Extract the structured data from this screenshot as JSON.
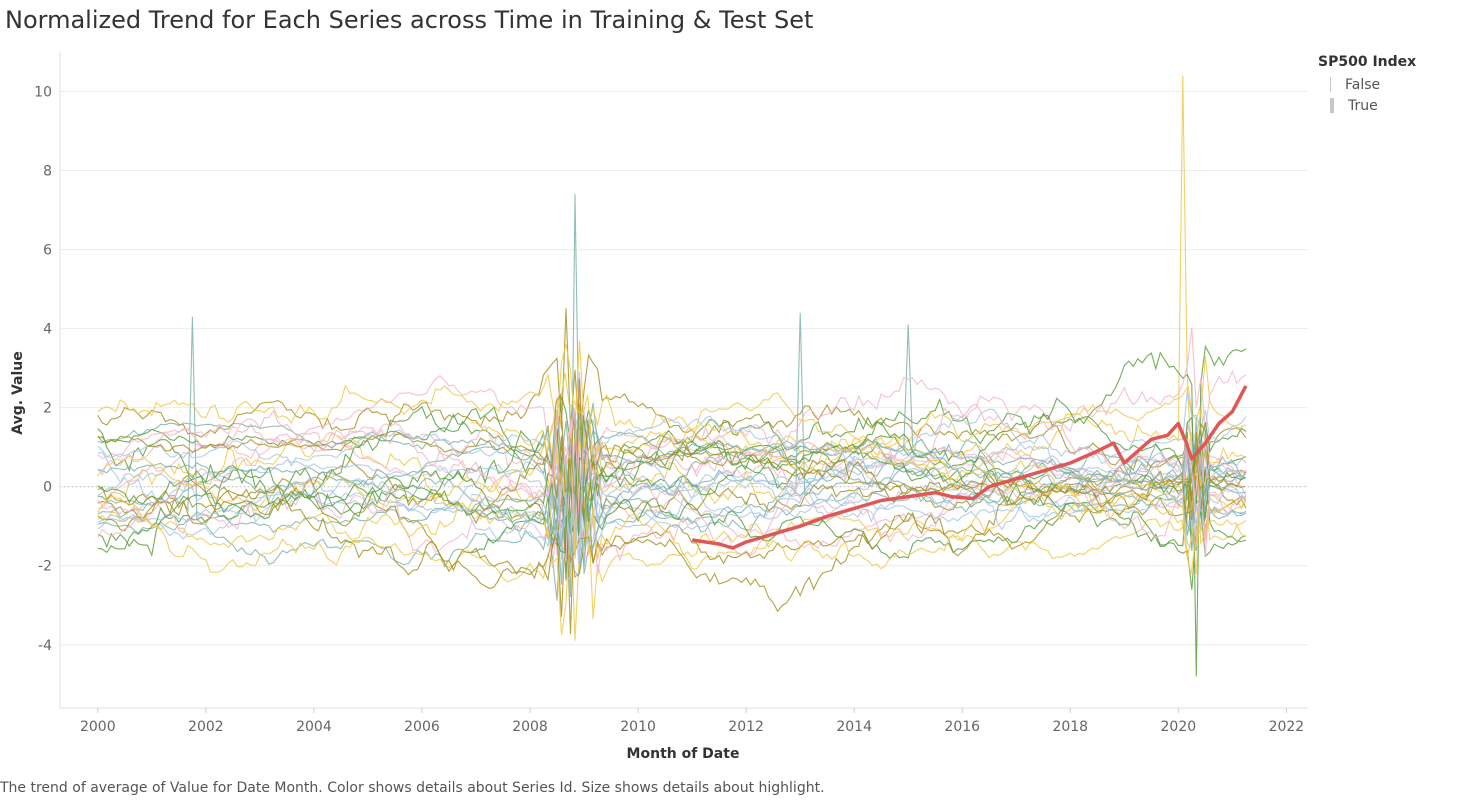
{
  "chart_data": {
    "type": "line",
    "title": "Normalized Trend for Each Series across Time in Training & Test Set",
    "xlabel": "Month of Date",
    "ylabel": "Avg. Value",
    "xlim": [
      1999.3,
      2022.4
    ],
    "ylim": [
      -5.6,
      11.0
    ],
    "x_ticks": [
      "2000",
      "2002",
      "2004",
      "2006",
      "2008",
      "2010",
      "2012",
      "2014",
      "2016",
      "2018",
      "2020",
      "2022"
    ],
    "y_ticks": [
      "-4",
      "-2",
      "0",
      "2",
      "4",
      "6",
      "8",
      "10"
    ],
    "zero_line": "dotted",
    "grid": true,
    "legend_position": "top-right",
    "legend": {
      "title": "SP500 Index",
      "entries": [
        {
          "label": "False",
          "size": "thin"
        },
        {
          "label": "True",
          "size": "thick"
        }
      ]
    },
    "caption": "The trend of average of Value for Date Month.  Color shows details about Series Id.  Size shows details about highlight.",
    "highlighted_series": {
      "name": "SP500 Index",
      "color": "#e05757",
      "x": [
        2011.0,
        2011.5,
        2011.75,
        2012.0,
        2012.5,
        2013.0,
        2013.5,
        2014.0,
        2014.5,
        2015.0,
        2015.5,
        2015.8,
        2016.2,
        2016.5,
        2017.0,
        2017.5,
        2018.0,
        2018.5,
        2018.8,
        2019.0,
        2019.5,
        2019.8,
        2020.0,
        2020.15,
        2020.25,
        2020.5,
        2020.75,
        2021.0,
        2021.25
      ],
      "y": [
        -1.35,
        -1.45,
        -1.55,
        -1.4,
        -1.2,
        -1.0,
        -0.75,
        -0.55,
        -0.35,
        -0.25,
        -0.15,
        -0.25,
        -0.3,
        0.0,
        0.2,
        0.4,
        0.6,
        0.9,
        1.1,
        0.6,
        1.2,
        1.3,
        1.6,
        1.1,
        0.7,
        1.1,
        1.6,
        1.9,
        2.55
      ]
    },
    "background_series": {
      "palette": [
        "#7fb3ad",
        "#5a9e3e",
        "#a8c7e6",
        "#f0c94a",
        "#a89022",
        "#f4b6c8"
      ],
      "start_dates": [
        2000.0,
        2000.0,
        2000.0,
        2000.0,
        2000.0,
        2000.0,
        2000.0,
        2000.0,
        2000.0,
        2000.0,
        2000.0,
        2000.0,
        2000.0,
        2000.0,
        2000.0,
        2000.0,
        2000.0,
        2000.0,
        2000.0,
        2000.0,
        2000.0,
        2000.0,
        2000.0,
        2000.0,
        2000.0,
        2000.0,
        2000.0,
        2000.0,
        2000.0,
        2000.0,
        2006.9,
        2006.9,
        2006.9,
        2006.9,
        2006.9,
        2006.9
      ],
      "count": 36,
      "value_range": [
        -4.9,
        10.4
      ]
    }
  }
}
